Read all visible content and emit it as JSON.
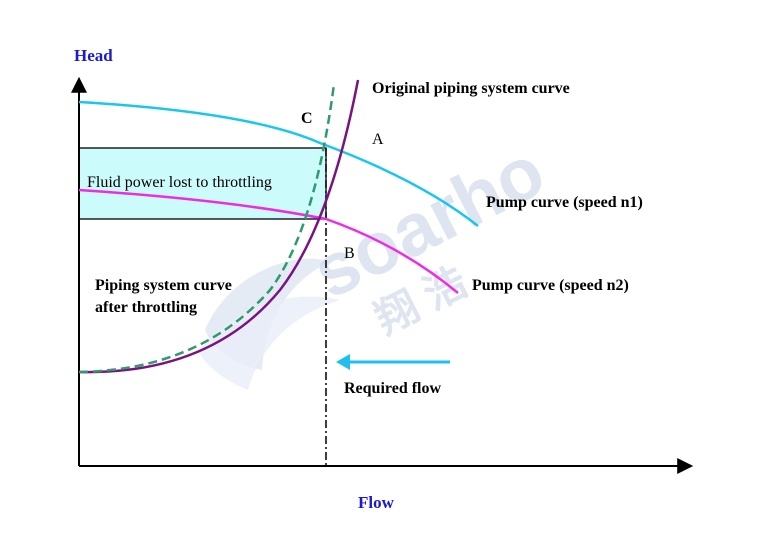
{
  "axes": {
    "y_title": "Head",
    "x_title": "Flow"
  },
  "labels": {
    "original_curve": "Original piping system curve",
    "point_a": "A",
    "point_b": "B",
    "point_c": "C",
    "pump_n1": "Pump curve (speed n1)",
    "pump_n2": "Pump curve (speed n2)",
    "throttled_curve_line1": "Piping system curve",
    "throttled_curve_line2": "after throttling",
    "power_lost": "Fluid power lost to throttling",
    "required_flow": "Required flow"
  },
  "watermark": {
    "latin": "soarho",
    "chinese": "翔 浩"
  },
  "colors": {
    "axis": "#000000",
    "pump_n1": "#19c6f0",
    "pump_n2": "#ee2be8",
    "original_system": "#7a137f",
    "throttled_system": "#2e9a6d",
    "power_lost_fill": "#ccfbfb",
    "arrow": "#1ec0ee",
    "axis_title": "#1a1ad6"
  }
}
